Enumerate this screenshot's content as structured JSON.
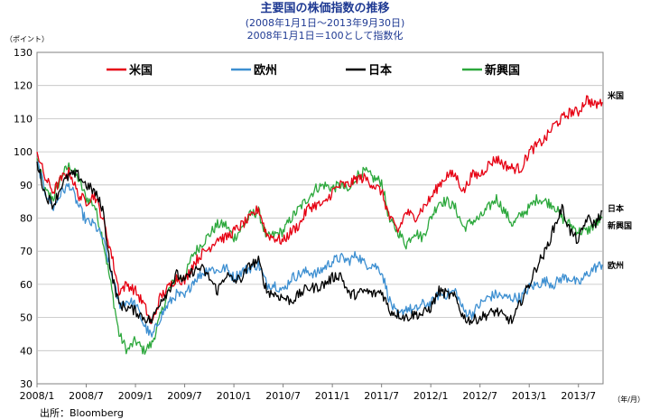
{
  "chart_data": {
    "type": "line",
    "title": "主要国の株価指数の推移",
    "subtitle_lines": [
      "(2008年1月1日〜2013年9月30日)",
      "2008年1月1日＝100として指数化"
    ],
    "ylabel": "（ポイント）",
    "xlabel": "（年/月）",
    "source": "出所：Bloomberg",
    "ylim": [
      30,
      130
    ],
    "yticks": [
      30,
      40,
      50,
      60,
      70,
      80,
      90,
      100,
      110,
      120,
      130
    ],
    "xlim": [
      0,
      69
    ],
    "xticks": [
      {
        "month": 0,
        "label": "2008/1"
      },
      {
        "month": 6,
        "label": "2008/7"
      },
      {
        "month": 12,
        "label": "2009/1"
      },
      {
        "month": 18,
        "label": "2009/7"
      },
      {
        "month": 24,
        "label": "2010/1"
      },
      {
        "month": 30,
        "label": "2010/7"
      },
      {
        "month": 36,
        "label": "2011/1"
      },
      {
        "month": 42,
        "label": "2011/7"
      },
      {
        "month": 48,
        "label": "2012/1"
      },
      {
        "month": 54,
        "label": "2012/7"
      },
      {
        "month": 60,
        "label": "2013/1"
      },
      {
        "month": 66,
        "label": "2013/7"
      }
    ],
    "grid": true,
    "legend_position": "top",
    "series": [
      {
        "name": "米国",
        "color": "#e60012",
        "end_label": "米国",
        "points": [
          [
            0,
            100
          ],
          [
            1,
            92
          ],
          [
            2,
            88
          ],
          [
            3,
            92
          ],
          [
            4,
            94
          ],
          [
            5,
            87
          ],
          [
            6,
            85
          ],
          [
            7,
            87
          ],
          [
            8,
            80
          ],
          [
            9,
            70
          ],
          [
            10,
            58
          ],
          [
            11,
            60
          ],
          [
            12,
            58
          ],
          [
            13,
            54
          ],
          [
            14,
            48
          ],
          [
            15,
            56
          ],
          [
            16,
            59
          ],
          [
            17,
            62
          ],
          [
            18,
            61
          ],
          [
            19,
            66
          ],
          [
            20,
            69
          ],
          [
            21,
            71
          ],
          [
            22,
            74
          ],
          [
            23,
            74
          ],
          [
            24,
            76
          ],
          [
            25,
            78
          ],
          [
            26,
            80
          ],
          [
            27,
            83
          ],
          [
            28,
            75
          ],
          [
            29,
            74
          ],
          [
            30,
            73
          ],
          [
            31,
            76
          ],
          [
            32,
            78
          ],
          [
            33,
            83
          ],
          [
            34,
            84
          ],
          [
            35,
            84
          ],
          [
            36,
            88
          ],
          [
            37,
            90
          ],
          [
            38,
            90
          ],
          [
            39,
            92
          ],
          [
            40,
            92
          ],
          [
            41,
            90
          ],
          [
            42,
            88
          ],
          [
            43,
            80
          ],
          [
            44,
            76
          ],
          [
            45,
            82
          ],
          [
            46,
            80
          ],
          [
            47,
            83
          ],
          [
            48,
            86
          ],
          [
            49,
            90
          ],
          [
            50,
            93
          ],
          [
            51,
            93
          ],
          [
            52,
            88
          ],
          [
            53,
            93
          ],
          [
            54,
            93
          ],
          [
            55,
            96
          ],
          [
            56,
            98
          ],
          [
            57,
            96
          ],
          [
            58,
            95
          ],
          [
            59,
            95
          ],
          [
            60,
            100
          ],
          [
            61,
            102
          ],
          [
            62,
            104
          ],
          [
            63,
            108
          ],
          [
            64,
            110
          ],
          [
            65,
            112
          ],
          [
            66,
            112
          ],
          [
            67,
            116
          ],
          [
            68,
            114
          ],
          [
            68.9,
            115
          ]
        ]
      },
      {
        "name": "欧州",
        "color": "#3d8fd1",
        "end_label": "欧州",
        "points": [
          [
            0,
            97
          ],
          [
            1,
            88
          ],
          [
            2,
            83
          ],
          [
            3,
            88
          ],
          [
            4,
            90
          ],
          [
            5,
            84
          ],
          [
            6,
            79
          ],
          [
            7,
            78
          ],
          [
            8,
            74
          ],
          [
            9,
            64
          ],
          [
            10,
            54
          ],
          [
            11,
            55
          ],
          [
            12,
            54
          ],
          [
            13,
            48
          ],
          [
            14,
            44
          ],
          [
            15,
            50
          ],
          [
            16,
            54
          ],
          [
            17,
            57
          ],
          [
            18,
            56
          ],
          [
            19,
            61
          ],
          [
            20,
            63
          ],
          [
            21,
            65
          ],
          [
            22,
            64
          ],
          [
            23,
            65
          ],
          [
            24,
            62
          ],
          [
            25,
            64
          ],
          [
            26,
            65
          ],
          [
            27,
            66
          ],
          [
            28,
            60
          ],
          [
            29,
            60
          ],
          [
            30,
            58
          ],
          [
            31,
            62
          ],
          [
            32,
            63
          ],
          [
            33,
            64
          ],
          [
            34,
            63
          ],
          [
            35,
            65
          ],
          [
            36,
            67
          ],
          [
            37,
            68
          ],
          [
            38,
            67
          ],
          [
            39,
            69
          ],
          [
            40,
            66
          ],
          [
            41,
            66
          ],
          [
            42,
            64
          ],
          [
            43,
            55
          ],
          [
            44,
            50
          ],
          [
            45,
            53
          ],
          [
            46,
            52
          ],
          [
            47,
            54
          ],
          [
            48,
            54
          ],
          [
            49,
            57
          ],
          [
            50,
            57
          ],
          [
            51,
            58
          ],
          [
            52,
            52
          ],
          [
            53,
            51
          ],
          [
            54,
            54
          ],
          [
            55,
            56
          ],
          [
            56,
            57
          ],
          [
            57,
            56
          ],
          [
            58,
            56
          ],
          [
            59,
            56
          ],
          [
            60,
            59
          ],
          [
            61,
            60
          ],
          [
            62,
            61
          ],
          [
            63,
            60
          ],
          [
            64,
            62
          ],
          [
            65,
            62
          ],
          [
            66,
            60
          ],
          [
            67,
            63
          ],
          [
            68,
            65
          ],
          [
            68.9,
            66
          ]
        ]
      },
      {
        "name": "日本",
        "color": "#000000",
        "end_label": "日本",
        "points": [
          [
            0,
            97
          ],
          [
            1,
            87
          ],
          [
            2,
            84
          ],
          [
            3,
            90
          ],
          [
            4,
            93
          ],
          [
            5,
            93
          ],
          [
            6,
            90
          ],
          [
            7,
            88
          ],
          [
            8,
            83
          ],
          [
            9,
            64
          ],
          [
            10,
            54
          ],
          [
            11,
            53
          ],
          [
            12,
            52
          ],
          [
            13,
            50
          ],
          [
            14,
            49
          ],
          [
            15,
            55
          ],
          [
            16,
            58
          ],
          [
            17,
            63
          ],
          [
            18,
            61
          ],
          [
            19,
            64
          ],
          [
            20,
            65
          ],
          [
            21,
            62
          ],
          [
            22,
            58
          ],
          [
            23,
            63
          ],
          [
            24,
            61
          ],
          [
            25,
            62
          ],
          [
            26,
            66
          ],
          [
            27,
            67
          ],
          [
            28,
            58
          ],
          [
            29,
            57
          ],
          [
            30,
            56
          ],
          [
            31,
            55
          ],
          [
            32,
            57
          ],
          [
            33,
            59
          ],
          [
            34,
            59
          ],
          [
            35,
            60
          ],
          [
            36,
            62
          ],
          [
            37,
            63
          ],
          [
            38,
            57
          ],
          [
            39,
            57
          ],
          [
            40,
            58
          ],
          [
            41,
            57
          ],
          [
            42,
            58
          ],
          [
            43,
            52
          ],
          [
            44,
            51
          ],
          [
            45,
            50
          ],
          [
            46,
            51
          ],
          [
            47,
            51
          ],
          [
            48,
            53
          ],
          [
            49,
            58
          ],
          [
            50,
            57
          ],
          [
            51,
            56
          ],
          [
            52,
            50
          ],
          [
            53,
            49
          ],
          [
            54,
            50
          ],
          [
            55,
            51
          ],
          [
            56,
            52
          ],
          [
            57,
            50
          ],
          [
            58,
            49
          ],
          [
            59,
            55
          ],
          [
            60,
            60
          ],
          [
            61,
            66
          ],
          [
            62,
            70
          ],
          [
            63,
            77
          ],
          [
            64,
            83
          ],
          [
            65,
            76
          ],
          [
            66,
            73
          ],
          [
            67,
            80
          ],
          [
            68,
            78
          ],
          [
            68.9,
            82
          ]
        ]
      },
      {
        "name": "新興国",
        "color": "#2ca83c",
        "end_label": "新興国",
        "points": [
          [
            0,
            98
          ],
          [
            1,
            88
          ],
          [
            2,
            86
          ],
          [
            3,
            93
          ],
          [
            4,
            96
          ],
          [
            5,
            92
          ],
          [
            6,
            86
          ],
          [
            7,
            84
          ],
          [
            8,
            74
          ],
          [
            9,
            60
          ],
          [
            10,
            45
          ],
          [
            11,
            40
          ],
          [
            12,
            43
          ],
          [
            13,
            40
          ],
          [
            14,
            42
          ],
          [
            15,
            50
          ],
          [
            16,
            58
          ],
          [
            17,
            62
          ],
          [
            18,
            62
          ],
          [
            19,
            69
          ],
          [
            20,
            72
          ],
          [
            21,
            75
          ],
          [
            22,
            78
          ],
          [
            23,
            78
          ],
          [
            24,
            74
          ],
          [
            25,
            77
          ],
          [
            26,
            81
          ],
          [
            27,
            82
          ],
          [
            28,
            74
          ],
          [
            29,
            75
          ],
          [
            30,
            76
          ],
          [
            31,
            80
          ],
          [
            32,
            83
          ],
          [
            33,
            86
          ],
          [
            34,
            89
          ],
          [
            35,
            90
          ],
          [
            36,
            89
          ],
          [
            37,
            90
          ],
          [
            38,
            88
          ],
          [
            39,
            93
          ],
          [
            40,
            94
          ],
          [
            41,
            92
          ],
          [
            42,
            91
          ],
          [
            43,
            79
          ],
          [
            44,
            76
          ],
          [
            45,
            72
          ],
          [
            46,
            76
          ],
          [
            47,
            74
          ],
          [
            48,
            80
          ],
          [
            49,
            85
          ],
          [
            50,
            85
          ],
          [
            51,
            83
          ],
          [
            52,
            77
          ],
          [
            53,
            79
          ],
          [
            54,
            80
          ],
          [
            55,
            83
          ],
          [
            56,
            86
          ],
          [
            57,
            82
          ],
          [
            58,
            78
          ],
          [
            59,
            81
          ],
          [
            60,
            83
          ],
          [
            61,
            86
          ],
          [
            62,
            85
          ],
          [
            63,
            84
          ],
          [
            64,
            80
          ],
          [
            65,
            78
          ],
          [
            66,
            76
          ],
          [
            67,
            76
          ],
          [
            68,
            78
          ],
          [
            68.9,
            80
          ]
        ]
      }
    ]
  }
}
